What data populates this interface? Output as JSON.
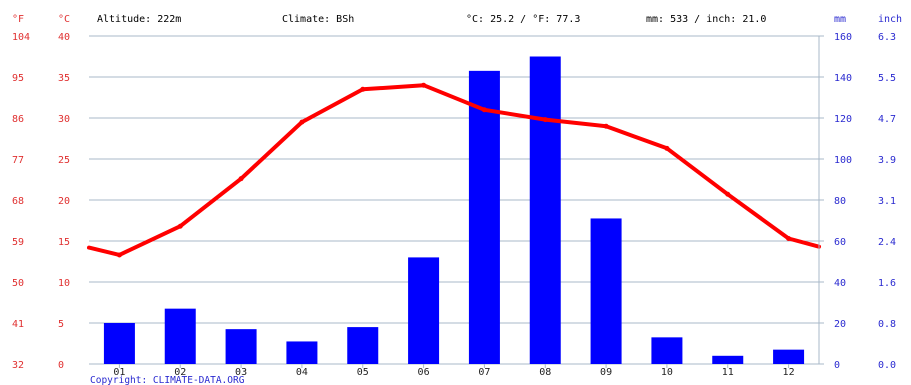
{
  "header": {
    "unit_f": "°F",
    "unit_c": "°C",
    "altitude": "Altitude: 222m",
    "climate": "Climate: BSh",
    "temp_avg": "°C: 25.2 / °F: 77.3",
    "precip_total": "mm: 533 / inch: 21.0",
    "unit_mm": "mm",
    "unit_inch": "inch"
  },
  "copyright": "Copyright: CLIMATE-DATA.ORG",
  "colors": {
    "temperature": "#ff0000",
    "precipitation": "#0000ff",
    "left_axis_text": "#e03030",
    "right_axis_text": "#2a2ad0",
    "grid": "#a8b8c8"
  },
  "chart_data": {
    "type": "bar",
    "title": "",
    "categories": [
      "01",
      "02",
      "03",
      "04",
      "05",
      "06",
      "07",
      "08",
      "09",
      "10",
      "11",
      "12"
    ],
    "grid": "horizontal",
    "temperature_axis": {
      "c_ticks": [
        "0",
        "5",
        "10",
        "15",
        "20",
        "25",
        "30",
        "35",
        "40"
      ],
      "f_ticks": [
        "32",
        "41",
        "50",
        "59",
        "68",
        "77",
        "86",
        "95",
        "104"
      ],
      "ylim": [
        0,
        40
      ]
    },
    "precipitation_axis": {
      "mm_ticks": [
        "0",
        "20",
        "40",
        "60",
        "80",
        "100",
        "120",
        "140",
        "160"
      ],
      "inch_ticks": [
        "0.0",
        "0.8",
        "1.6",
        "2.4",
        "3.1",
        "3.9",
        "4.7",
        "5.5",
        "6.3"
      ],
      "ylim": [
        0,
        160
      ]
    },
    "series": [
      {
        "type": "bar",
        "axis": "precipitation",
        "values": [
          20,
          27,
          17,
          11,
          18,
          52,
          143,
          150,
          71,
          13,
          4,
          7
        ]
      },
      {
        "type": "line",
        "axis": "temperature",
        "start_value": 14.2,
        "end_value": 14.3,
        "values": [
          13.3,
          16.8,
          22.6,
          29.5,
          33.5,
          34.0,
          31.0,
          29.8,
          29.0,
          26.3,
          20.7,
          15.3
        ]
      }
    ]
  }
}
